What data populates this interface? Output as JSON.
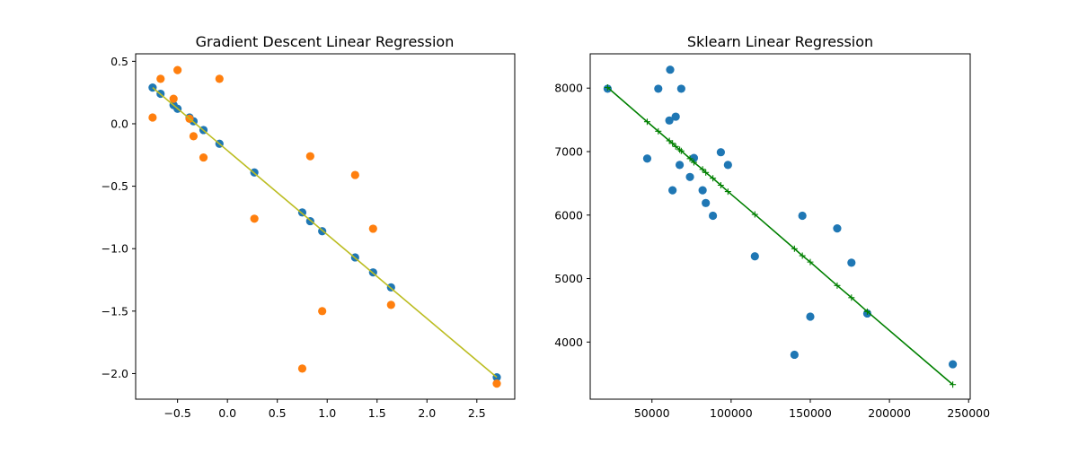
{
  "chart_data": [
    {
      "type": "scatter",
      "title": "Gradient Descent Linear Regression",
      "xlabel": "",
      "ylabel": "",
      "xlim": [
        -0.92,
        2.88
      ],
      "ylim": [
        -2.205,
        0.56
      ],
      "xticks": [
        -0.5,
        0.0,
        0.5,
        1.0,
        1.5,
        2.0,
        2.5
      ],
      "xtick_labels": [
        "−0.5",
        "0.0",
        "0.5",
        "1.0",
        "1.5",
        "2.0",
        "2.5"
      ],
      "yticks": [
        -2.0,
        -1.5,
        -1.0,
        -0.5,
        0.0,
        0.5
      ],
      "ytick_labels": [
        "−2.0",
        "−1.5",
        "−1.0",
        "−0.5",
        "0.0",
        "0.5"
      ],
      "grid": false,
      "fit_line": {
        "color": "#bcbd22",
        "x": [
          -0.75,
          2.7
        ],
        "y": [
          0.29,
          -2.03
        ]
      },
      "series": [
        {
          "color": "#1f77b4",
          "points": [
            [
              -0.75,
              0.29
            ],
            [
              -0.67,
              0.24
            ],
            [
              -0.54,
              0.15
            ],
            [
              -0.5,
              0.12
            ],
            [
              -0.38,
              0.05
            ],
            [
              -0.34,
              0.02
            ],
            [
              -0.24,
              -0.05
            ],
            [
              -0.08,
              -0.16
            ],
            [
              0.27,
              -0.39
            ],
            [
              0.75,
              -0.71
            ],
            [
              0.83,
              -0.78
            ],
            [
              0.95,
              -0.86
            ],
            [
              1.28,
              -1.07
            ],
            [
              1.46,
              -1.19
            ],
            [
              1.64,
              -1.31
            ],
            [
              2.7,
              -2.03
            ]
          ]
        },
        {
          "color": "#ff7f0e",
          "points": [
            [
              -0.75,
              0.05
            ],
            [
              -0.67,
              0.36
            ],
            [
              -0.54,
              0.2
            ],
            [
              -0.5,
              0.43
            ],
            [
              -0.38,
              0.04
            ],
            [
              -0.34,
              -0.1
            ],
            [
              -0.24,
              -0.27
            ],
            [
              -0.08,
              0.36
            ],
            [
              0.27,
              -0.76
            ],
            [
              0.75,
              -1.96
            ],
            [
              0.83,
              -0.26
            ],
            [
              0.95,
              -1.5
            ],
            [
              1.28,
              -0.41
            ],
            [
              1.46,
              -0.84
            ],
            [
              1.64,
              -1.45
            ],
            [
              2.7,
              -2.08
            ]
          ]
        }
      ]
    },
    {
      "type": "scatter",
      "title": "Sklearn Linear Regression",
      "xlabel": "",
      "ylabel": "",
      "xlim": [
        11000,
        251000
      ],
      "ylim": [
        3100,
        8540
      ],
      "xticks": [
        50000,
        100000,
        150000,
        200000,
        250000
      ],
      "xtick_labels": [
        "50000",
        "100000",
        "150000",
        "200000",
        "250000"
      ],
      "yticks": [
        4000,
        5000,
        6000,
        7000,
        8000
      ],
      "ytick_labels": [
        "4000",
        "5000",
        "6000",
        "7000",
        "8000"
      ],
      "grid": false,
      "fit_line": {
        "color": "#008000",
        "x": [
          22000,
          47000,
          54000,
          61000,
          63000,
          65000,
          67500,
          68500,
          74000,
          76500,
          82000,
          84000,
          88500,
          93500,
          98000,
          115000,
          140000,
          145000,
          150000,
          167000,
          176000,
          186000,
          240000
        ],
        "y": [
          8010,
          7470,
          7320,
          7170,
          7130,
          7080,
          7030,
          7010,
          6890,
          6830,
          6720,
          6670,
          6580,
          6470,
          6370,
          6010,
          5470,
          5360,
          5260,
          4890,
          4700,
          4480,
          3330
        ]
      },
      "series": [
        {
          "color": "#1f77b4",
          "points": [
            [
              22000,
              7990
            ],
            [
              47000,
              6890
            ],
            [
              54000,
              7990
            ],
            [
              61000,
              7490
            ],
            [
              61500,
              8290
            ],
            [
              63000,
              6390
            ],
            [
              65000,
              7550
            ],
            [
              67500,
              6790
            ],
            [
              68500,
              7990
            ],
            [
              74000,
              6600
            ],
            [
              76500,
              6900
            ],
            [
              82000,
              6390
            ],
            [
              84000,
              6190
            ],
            [
              88500,
              5990
            ],
            [
              93500,
              6990
            ],
            [
              98000,
              6790
            ],
            [
              115000,
              5350
            ],
            [
              140000,
              3800
            ],
            [
              145000,
              5990
            ],
            [
              150000,
              4400
            ],
            [
              167000,
              5790
            ],
            [
              176000,
              5250
            ],
            [
              186000,
              4450
            ],
            [
              240000,
              3650
            ]
          ]
        }
      ]
    }
  ]
}
